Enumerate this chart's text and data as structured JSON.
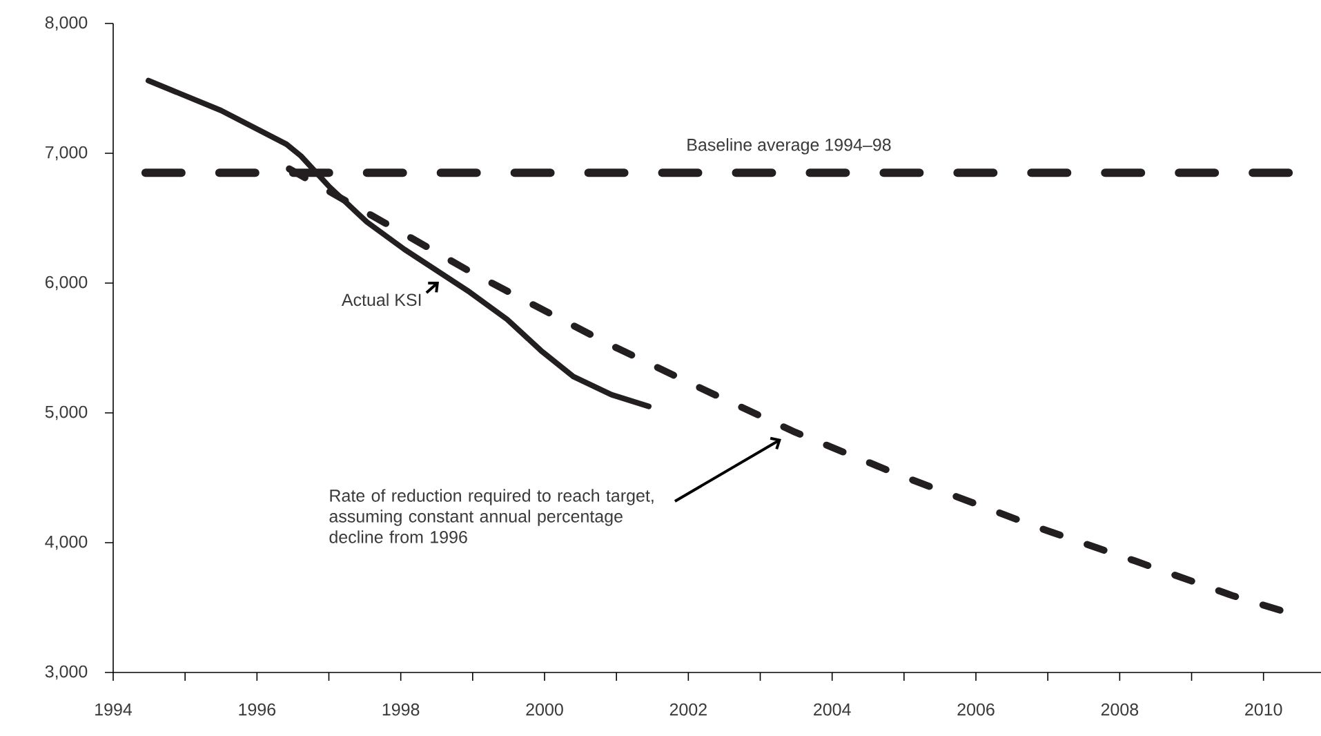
{
  "chart_data": {
    "type": "line",
    "xlim": [
      1994,
      2010.8
    ],
    "ylim": [
      3000,
      8000
    ],
    "xticks": [
      1994,
      {
        "value": 1995,
        "label": null
      },
      1996,
      {
        "value": 1997,
        "label": null
      },
      1998,
      {
        "value": 1999,
        "label": null
      },
      2000,
      {
        "value": 2001,
        "label": null
      },
      2002,
      {
        "value": 2003,
        "label": null
      },
      2004,
      {
        "value": 2005,
        "label": null
      },
      2006,
      {
        "value": 2007,
        "label": null
      },
      2008,
      {
        "value": 2009,
        "label": null
      },
      2010
    ],
    "yticks": [
      {
        "value": 3000,
        "label": "3,000"
      },
      {
        "value": 4000,
        "label": "4,000"
      },
      {
        "value": 5000,
        "label": "5,000"
      },
      {
        "value": 6000,
        "label": "6,000"
      },
      {
        "value": 7000,
        "label": "7,000"
      },
      {
        "value": 8000,
        "label": "8,000"
      }
    ],
    "series": [
      {
        "color": "#231f20",
        "line_style": "solid",
        "x": [
          1994.49,
          1995.5,
          1996.41,
          1996.61,
          1997.01,
          1997.53,
          1998.05,
          1998.96,
          1999.48,
          1999.95,
          2000.4,
          2000.93,
          2001.45
        ],
        "values": [
          7560,
          7330,
          7070,
          6980,
          6740,
          6470,
          6260,
          5930,
          5720,
          5480,
          5280,
          5140,
          5050
        ]
      },
      {
        "color": "#231f20",
        "line_style": "dashed",
        "x": [
          1996.45,
          1997.79,
          1998.96,
          1999.68,
          2000.93,
          2002.25,
          2003.49,
          2004.94,
          2006.9,
          2008.21,
          2009.58,
          2010.23
        ],
        "values": [
          6880,
          6460,
          6090,
          5880,
          5520,
          5170,
          4850,
          4520,
          4110,
          3860,
          3590,
          3480
        ]
      },
      {
        "name": "Baseline average 1994–98",
        "color": "#231f20",
        "line_style": "dashed",
        "x": [
          1994.45,
          2010.35
        ],
        "values": [
          6850,
          6850
        ]
      }
    ],
    "annotations": [
      "Actual KSI",
      "Rate of reduction required to reach target, assuming constant annual percentage decline from 1996"
    ]
  }
}
